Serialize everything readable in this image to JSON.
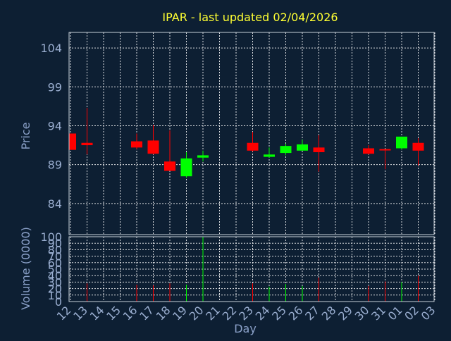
{
  "chart_data": {
    "type": "candlestick",
    "title": "IPAR - last updated 02/04/2026",
    "xlabel": "Day",
    "price_panel": {
      "ylabel": "Price",
      "ylim": [
        80,
        106
      ],
      "yticks": [
        84,
        89,
        94,
        99,
        104
      ],
      "grid": true
    },
    "volume_panel": {
      "ylabel": "Volume (0000)",
      "ylim": [
        0,
        100
      ],
      "yticks": [
        0,
        10,
        20,
        30,
        40,
        50,
        60,
        70,
        80,
        90,
        100
      ],
      "grid": true
    },
    "x_ticks": [
      "12",
      "13",
      "14",
      "15",
      "16",
      "17",
      "18",
      "19",
      "20",
      "21",
      "22",
      "23",
      "24",
      "25",
      "26",
      "27",
      "28",
      "29",
      "30",
      "31",
      "01",
      "02",
      "03"
    ],
    "candles": [
      {
        "day": "12",
        "open": 93.0,
        "high": 93.0,
        "low": 90.9,
        "close": 90.9,
        "volume": 0
      },
      {
        "day": "13",
        "open": 91.8,
        "high": 96.3,
        "low": 90.3,
        "close": 91.5,
        "volume": 28
      },
      {
        "day": "16",
        "open": 92.0,
        "high": 93.0,
        "low": 91.0,
        "close": 91.2,
        "volume": 26
      },
      {
        "day": "17",
        "open": 92.1,
        "high": 94.1,
        "low": 90.3,
        "close": 90.4,
        "volume": 25
      },
      {
        "day": "18",
        "open": 89.4,
        "high": 93.4,
        "low": 88.2,
        "close": 88.2,
        "volume": 28
      },
      {
        "day": "19",
        "open": 87.5,
        "high": 90.6,
        "low": 87.3,
        "close": 89.8,
        "volume": 26
      },
      {
        "day": "20",
        "open": 89.9,
        "high": 90.8,
        "low": 89.4,
        "close": 90.2,
        "volume": 100
      },
      {
        "day": "23",
        "open": 91.8,
        "high": 93.2,
        "low": 90.7,
        "close": 90.8,
        "volume": 28
      },
      {
        "day": "24",
        "open": 90.0,
        "high": 91.2,
        "low": 89.9,
        "close": 90.3,
        "volume": 23
      },
      {
        "day": "25",
        "open": 90.5,
        "high": 91.7,
        "low": 90.2,
        "close": 91.4,
        "volume": 27
      },
      {
        "day": "26",
        "open": 90.8,
        "high": 92.2,
        "low": 90.8,
        "close": 91.6,
        "volume": 24
      },
      {
        "day": "27",
        "open": 91.2,
        "high": 92.8,
        "low": 88.1,
        "close": 90.6,
        "volume": 37
      },
      {
        "day": "30",
        "open": 91.1,
        "high": 91.5,
        "low": 90.3,
        "close": 90.4,
        "volume": 24
      },
      {
        "day": "31",
        "open": 91.0,
        "high": 91.0,
        "low": 88.4,
        "close": 90.9,
        "volume": 31
      },
      {
        "day": "01",
        "open": 91.1,
        "high": 92.6,
        "low": 90.9,
        "close": 92.6,
        "volume": 30
      },
      {
        "day": "02",
        "open": 91.8,
        "high": 92.4,
        "low": 88.9,
        "close": 90.8,
        "volume": 40
      }
    ],
    "colors": {
      "up": "#00ff00",
      "down": "#ff0000",
      "background": "#0d1f33",
      "grid": "#ffffff",
      "title": "#ffff33",
      "tick_label": "#9aaed0",
      "axis_label": "#8aa0c8"
    }
  }
}
